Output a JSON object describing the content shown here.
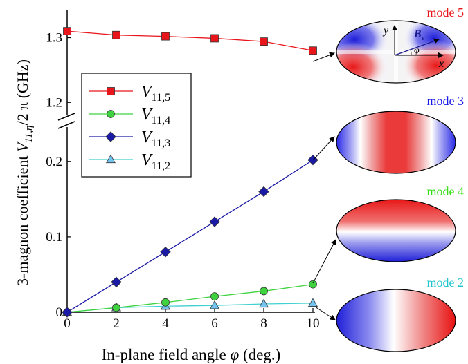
{
  "chart_data": {
    "type": "line",
    "xlabel_prefix": "In-plane field angle ",
    "xlabel_symbol": "φ",
    "xlabel_suffix": " (deg.)",
    "ylabel_text": "3-magnon coefficient ",
    "ylabel_sub": "11,η",
    "ylabel_tail": "/2 π (GHz)",
    "x_ticks": [
      0,
      2,
      4,
      6,
      8,
      10
    ],
    "x_tick_labels": [
      "0",
      "2",
      "4",
      "6",
      "8",
      "10"
    ],
    "xlim": [
      0,
      10
    ],
    "y_lower": {
      "ylim": [
        0,
        0.22
      ],
      "ticks": [
        0,
        0.1,
        0.2
      ],
      "tick_labels": [
        "0",
        "0.1",
        "0.2"
      ]
    },
    "y_upper": {
      "ylim": [
        1.18,
        1.34
      ],
      "ticks": [
        1.2,
        1.3
      ],
      "tick_labels": [
        "1.2",
        "1.3"
      ]
    },
    "axis_break": true,
    "x": [
      0,
      2,
      4,
      6,
      8,
      10
    ],
    "series": [
      {
        "name": "V11,5",
        "label_main": "V",
        "label_sub": "11,5",
        "panel": "upper",
        "marker": "square",
        "color": "#e8151b",
        "line_color": "#e8151b",
        "values": [
          1.31,
          1.304,
          1.302,
          1.299,
          1.294,
          1.28
        ]
      },
      {
        "name": "V11,4",
        "label_main": "V",
        "label_sub": "11,4",
        "panel": "lower",
        "marker": "circle",
        "color": "#3ed23e",
        "line_color": "#3ed23e",
        "values": [
          0.0,
          0.006,
          0.013,
          0.021,
          0.028,
          0.037
        ]
      },
      {
        "name": "V11,3",
        "label_main": "V",
        "label_sub": "11,3",
        "panel": "lower",
        "marker": "diamond",
        "color": "#1a1aa6",
        "line_color": "#1a1aa6",
        "values": [
          0.0,
          0.04,
          0.08,
          0.12,
          0.16,
          0.202
        ]
      },
      {
        "name": "V11,2",
        "label_main": "V",
        "label_sub": "11,2",
        "panel": "lower",
        "marker": "triangle",
        "color": "#74c4f0",
        "line_color": "#40d0d0",
        "values": [
          0.0,
          0.006,
          0.008,
          0.009,
          0.011,
          0.012
        ]
      }
    ],
    "legend_placement": "left-middle",
    "grid": false
  },
  "modes": [
    {
      "label": "mode 5",
      "color": "#e8151b"
    },
    {
      "label": "mode 3",
      "color": "#1a1ae8"
    },
    {
      "label": "mode 4",
      "color": "#33dd11"
    },
    {
      "label": "mode 2",
      "color": "#22c4cc"
    }
  ],
  "inset": {
    "y_label": "y",
    "x_label": "x",
    "b_main": "B",
    "b_sub": "e",
    "angle_label": "φ"
  }
}
